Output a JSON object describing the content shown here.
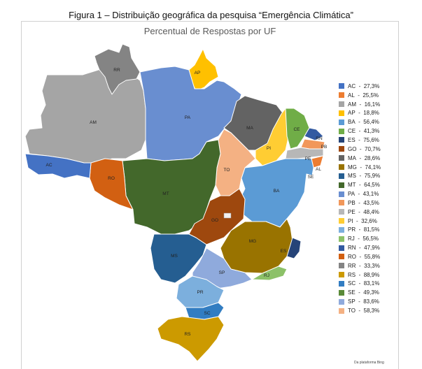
{
  "figure_title": "Figura 1 – Distribuição geográfica da pesquisa “Emergência Climática”",
  "map_title": "Percentual de Respostas por UF",
  "credit": "Da plataforma Bing",
  "states": [
    {
      "uf": "AC",
      "value": "27,3%",
      "color": "#4472c4"
    },
    {
      "uf": "AL",
      "value": "25,5%",
      "color": "#ed7d31"
    },
    {
      "uf": "AM",
      "value": "16,1%",
      "color": "#a5a5a5"
    },
    {
      "uf": "AP",
      "value": "18,8%",
      "color": "#ffc000"
    },
    {
      "uf": "BA",
      "value": "56,4%",
      "color": "#5b9bd5"
    },
    {
      "uf": "CE",
      "value": "41,3%",
      "color": "#70ad47"
    },
    {
      "uf": "ES",
      "value": "75,6%",
      "color": "#264478"
    },
    {
      "uf": "GO",
      "value": "70,7%",
      "color": "#9e480e"
    },
    {
      "uf": "MA",
      "value": "28,6%",
      "color": "#636363"
    },
    {
      "uf": "MG",
      "value": "74,1%",
      "color": "#997300"
    },
    {
      "uf": "MS",
      "value": "75,9%",
      "color": "#255e91"
    },
    {
      "uf": "MT",
      "value": "64,5%",
      "color": "#43682b"
    },
    {
      "uf": "PA",
      "value": "43,1%",
      "color": "#698ed0"
    },
    {
      "uf": "PB",
      "value": "43,5%",
      "color": "#f1975a"
    },
    {
      "uf": "PE",
      "value": "48,4%",
      "color": "#b7b7b7"
    },
    {
      "uf": "PI",
      "value": "32,6%",
      "color": "#ffcd33"
    },
    {
      "uf": "PR",
      "value": "81,5%",
      "color": "#7cafdd"
    },
    {
      "uf": "RJ",
      "value": "56,5%",
      "color": "#8cc168"
    },
    {
      "uf": "RN",
      "value": "47,9%",
      "color": "#335aa1"
    },
    {
      "uf": "RO",
      "value": "55,8%",
      "color": "#d26012"
    },
    {
      "uf": "RR",
      "value": "33,3%",
      "color": "#848484"
    },
    {
      "uf": "RS",
      "value": "88,9%",
      "color": "#cc9a00"
    },
    {
      "uf": "SC",
      "value": "83,1%",
      "color": "#327dc2"
    },
    {
      "uf": "SE",
      "value": "49,3%",
      "color": "#5a8a39"
    },
    {
      "uf": "SP",
      "value": "83,6%",
      "color": "#8faadc"
    },
    {
      "uf": "TO",
      "value": "58,3%",
      "color": "#f4b183"
    }
  ]
}
